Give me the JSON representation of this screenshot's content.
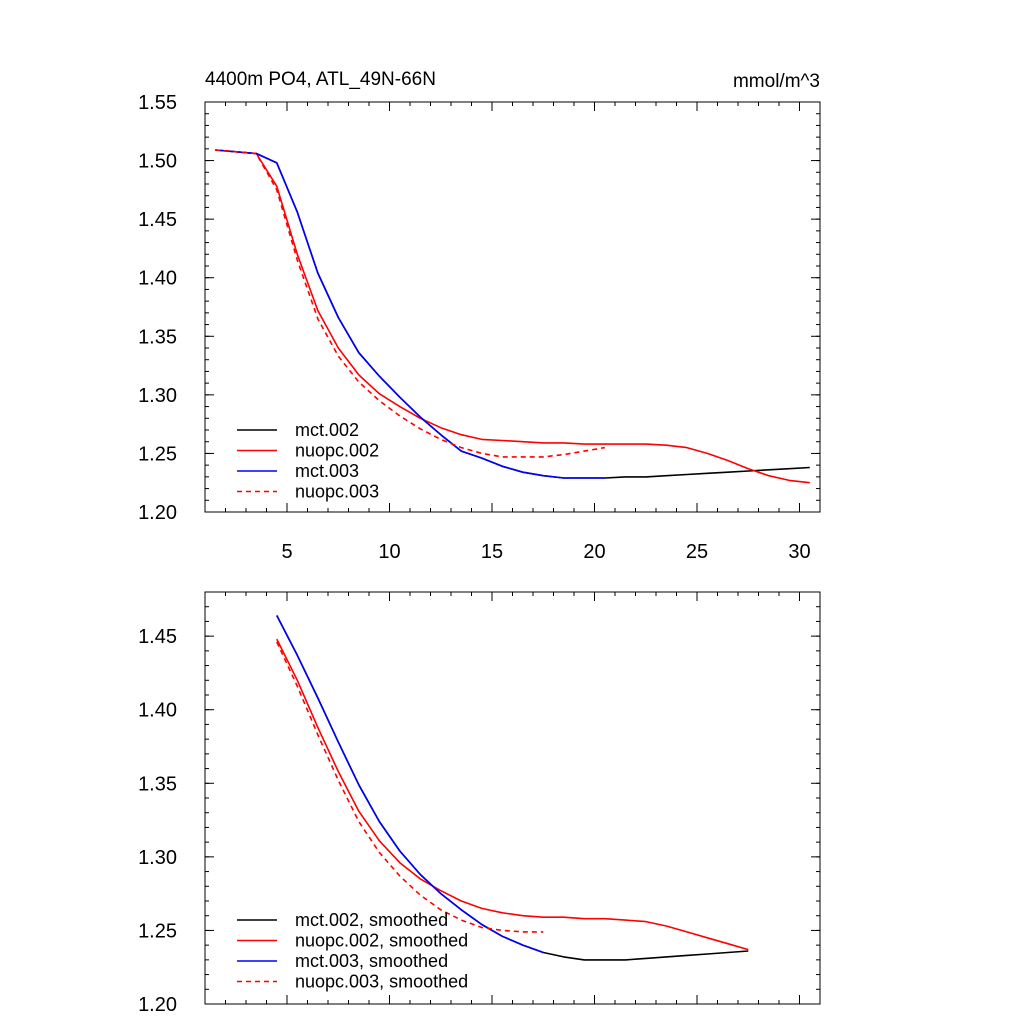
{
  "chart_data": [
    {
      "type": "line",
      "title": "4400m PO4, ATL_49N-66N",
      "units": "mmol/m^3",
      "xlim": [
        1,
        31
      ],
      "ylim": [
        1.2,
        1.55
      ],
      "x_ticks": [
        5,
        10,
        15,
        20,
        25,
        30
      ],
      "x_tick_labels": [
        "5",
        "10",
        "15",
        "20",
        "25",
        "30"
      ],
      "y_ticks": [
        1.2,
        1.25,
        1.3,
        1.35,
        1.4,
        1.45,
        1.5,
        1.55
      ],
      "y_tick_labels": [
        "1.20",
        "1.25",
        "1.30",
        "1.35",
        "1.40",
        "1.45",
        "1.50",
        "1.55"
      ],
      "legend_position": "bottom-left",
      "series": [
        {
          "name": "mct.002",
          "color": "#000000",
          "dash": "solid",
          "x": [
            1.5,
            3.5,
            4.5,
            5.5,
            6.5,
            7.5,
            8.5,
            9.5,
            10.5,
            11.5,
            12.5,
            13.5,
            14.5,
            15.5,
            16.5,
            17.5,
            18.5,
            19.5,
            20.5,
            21.5,
            22.5,
            23.5,
            24.5,
            25.5,
            26.5,
            27.5,
            28.5,
            29.5,
            30.5
          ],
          "values": [
            1.509,
            1.506,
            1.498,
            1.456,
            1.404,
            1.366,
            1.336,
            1.316,
            1.298,
            1.281,
            1.266,
            1.252,
            1.246,
            1.239,
            1.234,
            1.231,
            1.229,
            1.229,
            1.229,
            1.23,
            1.23,
            1.231,
            1.232,
            1.233,
            1.234,
            1.235,
            1.236,
            1.237,
            1.238
          ]
        },
        {
          "name": "nuopc.002",
          "color": "#ff0000",
          "dash": "solid",
          "x": [
            1.5,
            3.5,
            4.5,
            5.5,
            6.5,
            7.5,
            8.5,
            9.5,
            10.5,
            11.5,
            12.5,
            13.5,
            14.5,
            15.5,
            16.5,
            17.5,
            18.5,
            19.5,
            20.5,
            21.5,
            22.5,
            23.5,
            24.5,
            25.5,
            26.5,
            27.5,
            28.5,
            29.5,
            30.5
          ],
          "values": [
            1.509,
            1.506,
            1.478,
            1.42,
            1.372,
            1.34,
            1.317,
            1.301,
            1.29,
            1.28,
            1.272,
            1.266,
            1.262,
            1.261,
            1.26,
            1.259,
            1.259,
            1.258,
            1.258,
            1.258,
            1.258,
            1.257,
            1.255,
            1.25,
            1.244,
            1.237,
            1.231,
            1.227,
            1.225
          ]
        },
        {
          "name": "mct.003",
          "color": "#0000ff",
          "dash": "solid",
          "x": [
            1.5,
            3.5,
            4.5,
            5.5,
            6.5,
            7.5,
            8.5,
            9.5,
            10.5,
            11.5,
            12.5,
            13.5,
            14.5,
            15.5,
            16.5,
            17.5,
            18.5,
            19.5,
            20.5
          ],
          "values": [
            1.509,
            1.506,
            1.498,
            1.456,
            1.404,
            1.366,
            1.336,
            1.316,
            1.298,
            1.281,
            1.266,
            1.252,
            1.246,
            1.239,
            1.234,
            1.231,
            1.229,
            1.229,
            1.229
          ]
        },
        {
          "name": "nuopc.003",
          "color": "#ff0000",
          "dash": "dashed",
          "x": [
            1.5,
            3.5,
            4.5,
            5.5,
            6.5,
            7.5,
            8.5,
            9.5,
            10.5,
            11.5,
            12.5,
            13.5,
            14.5,
            15.5,
            16.5,
            17.5,
            18.5,
            19.5,
            20.5
          ],
          "values": [
            1.509,
            1.506,
            1.475,
            1.415,
            1.365,
            1.333,
            1.311,
            1.295,
            1.282,
            1.271,
            1.262,
            1.255,
            1.25,
            1.247,
            1.247,
            1.247,
            1.249,
            1.252,
            1.255
          ]
        }
      ]
    },
    {
      "type": "line",
      "title": "",
      "xlim": [
        1,
        31
      ],
      "ylim": [
        1.2,
        1.48
      ],
      "x_ticks": [
        5,
        10,
        15,
        20,
        25,
        30
      ],
      "x_tick_labels": [],
      "y_ticks": [
        1.2,
        1.25,
        1.3,
        1.35,
        1.4,
        1.45
      ],
      "y_tick_labels": [
        "1.20",
        "1.25",
        "1.30",
        "1.35",
        "1.40",
        "1.45"
      ],
      "legend_position": "bottom-left",
      "series": [
        {
          "name": "mct.002, smoothed",
          "color": "#000000",
          "dash": "solid",
          "x": [
            4.5,
            5.5,
            6.5,
            7.5,
            8.5,
            9.5,
            10.5,
            11.5,
            12.5,
            13.5,
            14.5,
            15.5,
            16.5,
            17.5,
            18.5,
            19.5,
            20.5,
            21.5,
            22.5,
            23.5,
            24.5,
            25.5,
            26.5,
            27.5
          ],
          "values": [
            1.464,
            1.437,
            1.408,
            1.378,
            1.349,
            1.324,
            1.304,
            1.288,
            1.275,
            1.264,
            1.254,
            1.246,
            1.24,
            1.235,
            1.232,
            1.23,
            1.23,
            1.23,
            1.231,
            1.232,
            1.233,
            1.234,
            1.235,
            1.236
          ]
        },
        {
          "name": "nuopc.002, smoothed",
          "color": "#ff0000",
          "dash": "solid",
          "x": [
            4.5,
            5.5,
            6.5,
            7.5,
            8.5,
            9.5,
            10.5,
            11.5,
            12.5,
            13.5,
            14.5,
            15.5,
            16.5,
            17.5,
            18.5,
            19.5,
            20.5,
            21.5,
            22.5,
            23.5,
            24.5,
            25.5,
            26.5,
            27.5
          ],
          "values": [
            1.448,
            1.42,
            1.388,
            1.358,
            1.331,
            1.311,
            1.296,
            1.285,
            1.277,
            1.27,
            1.265,
            1.262,
            1.26,
            1.259,
            1.259,
            1.258,
            1.258,
            1.257,
            1.256,
            1.253,
            1.249,
            1.245,
            1.241,
            1.237
          ]
        },
        {
          "name": "mct.003, smoothed",
          "color": "#0000ff",
          "dash": "solid",
          "x": [
            4.5,
            5.5,
            6.5,
            7.5,
            8.5,
            9.5,
            10.5,
            11.5,
            12.5,
            13.5,
            14.5,
            15.5,
            16.5,
            17.5
          ],
          "values": [
            1.464,
            1.437,
            1.408,
            1.378,
            1.349,
            1.324,
            1.304,
            1.288,
            1.275,
            1.264,
            1.254,
            1.246,
            1.24,
            1.235
          ]
        },
        {
          "name": "nuopc.003, smoothed",
          "color": "#ff0000",
          "dash": "dashed",
          "x": [
            4.5,
            5.5,
            6.5,
            7.5,
            8.5,
            9.5,
            10.5,
            11.5,
            12.5,
            13.5,
            14.5,
            15.5,
            16.5,
            17.5
          ],
          "values": [
            1.446,
            1.416,
            1.383,
            1.352,
            1.324,
            1.303,
            1.287,
            1.274,
            1.264,
            1.257,
            1.252,
            1.25,
            1.249,
            1.249
          ]
        }
      ]
    }
  ]
}
